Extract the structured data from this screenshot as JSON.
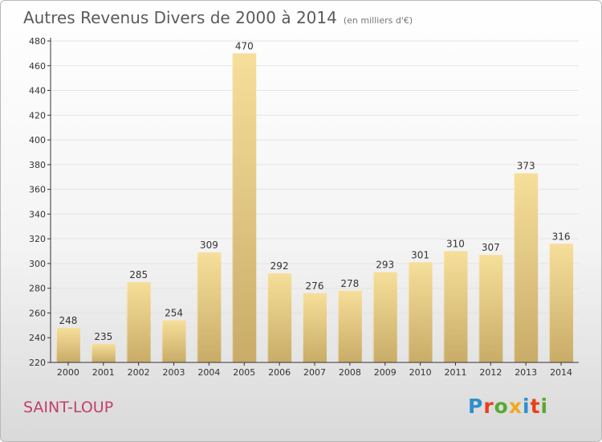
{
  "header": {
    "title": "Autres Revenus Divers de 2000 à 2014",
    "subtitle": "(en milliers d'€)"
  },
  "footer": {
    "location": "SAINT-LOUP",
    "logo_text": "Proxiti"
  },
  "colors": {
    "bar_light": "#f6df9a",
    "bar_dark": "#c8ac68",
    "axis": "#333333",
    "grid": "#e4e4e4",
    "location": "#c0406a",
    "logo_letters": [
      "#2f8fce",
      "#e8401c",
      "#59a832",
      "#f2a81d",
      "#2f8fce",
      "#e8401c",
      "#59a832"
    ]
  },
  "chart_data": {
    "type": "bar",
    "title": "Autres Revenus Divers de 2000 à 2014",
    "subtitle": "(en milliers d'€)",
    "categories": [
      "2000",
      "2001",
      "2002",
      "2003",
      "2004",
      "2005",
      "2006",
      "2007",
      "2008",
      "2009",
      "2010",
      "2011",
      "2012",
      "2013",
      "2014"
    ],
    "values": [
      248,
      235,
      285,
      254,
      309,
      470,
      292,
      276,
      278,
      293,
      301,
      310,
      307,
      373,
      316
    ],
    "ylim": [
      220,
      480
    ],
    "yticks": [
      220,
      240,
      260,
      280,
      300,
      320,
      340,
      360,
      380,
      400,
      420,
      440,
      460,
      480
    ],
    "data_labels": true,
    "legend": "none"
  }
}
